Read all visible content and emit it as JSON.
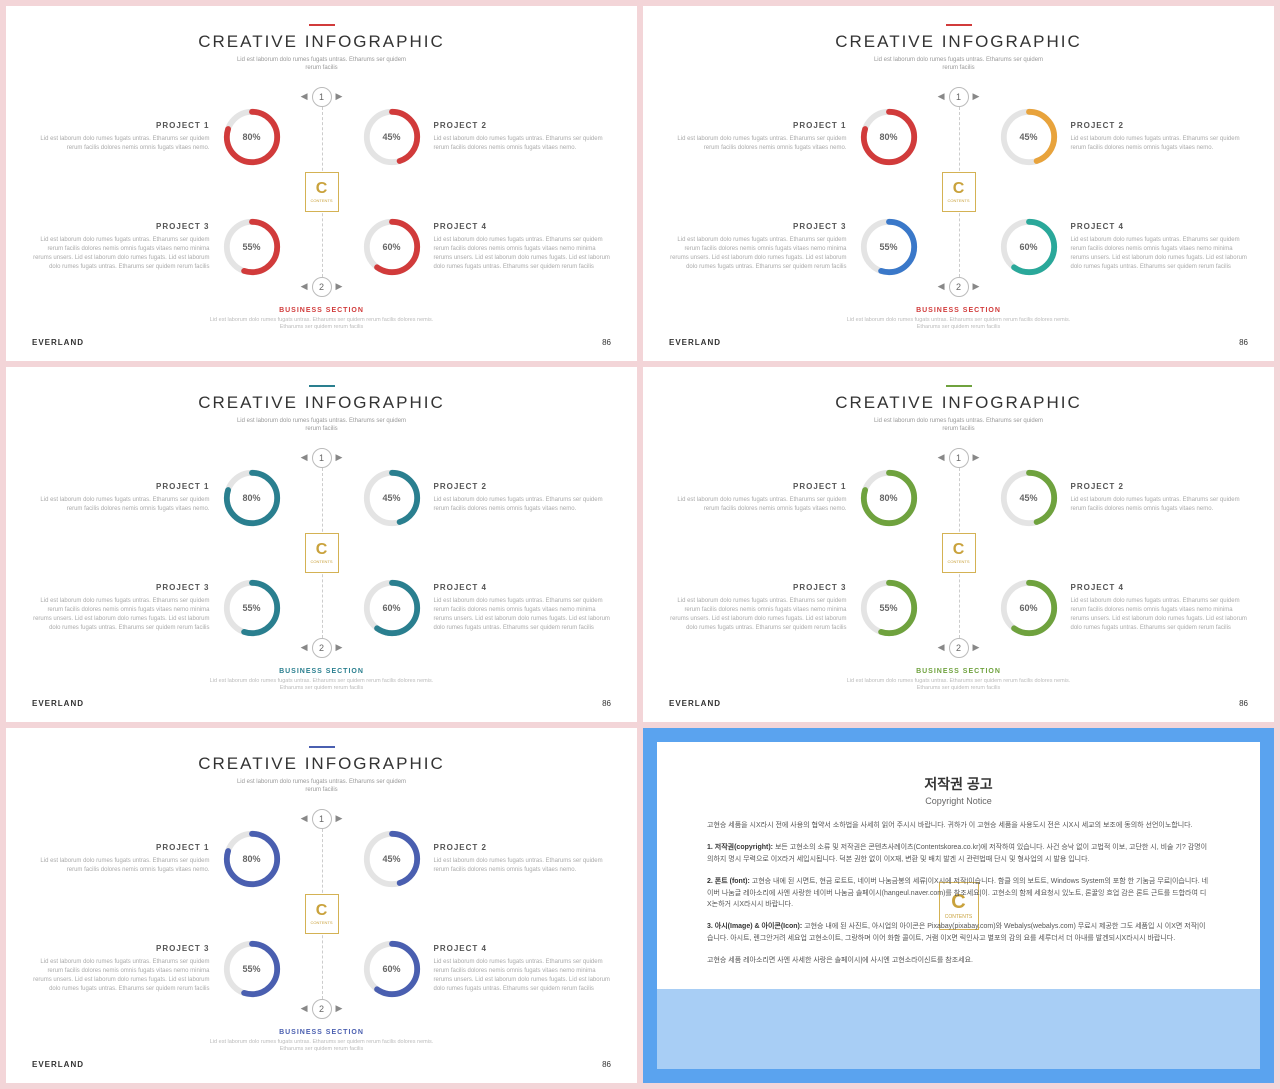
{
  "shared": {
    "title": "CREATIVE INFOGRAPHIC",
    "subtitle": "Lid est laborum dolo rumes fugats untras. Etharums ser quidem\nrerum facilis",
    "lorem": "Lid est laborum dolo rumes fugats untras. Etharums ser quidem rerum facilis dolores nemis omnis fugats vitaes nemo.",
    "lorem2": "Lid est laborum dolo rumes fugats untras. Etharums ser quidem rerum facilis dolores nemis omnis fugats vitaes nemo minima rerums unsers. Lid est laborum dolo rumes fugats. Lid est laborum dolo rumes fugats untras. Etharums ser quidem rerum facilis",
    "biz_section": "BUSINESS SECTION",
    "bottom_lorem": "Lid est laborum dolo rumes fugats untras. Etharums ser quidem rerum facilis dolores nemis.\nEtharums ser quidem rerum facilis",
    "brand": "EVERLAND",
    "page": "86",
    "projects": [
      {
        "label": "PROJECT 1",
        "pct": 80
      },
      {
        "label": "PROJECT 2",
        "pct": 45
      },
      {
        "label": "PROJECT 3",
        "pct": 55
      },
      {
        "label": "PROJECT 4",
        "pct": 60
      }
    ],
    "steps": [
      "1",
      "2"
    ],
    "logo_letter": "C",
    "logo_sub": "CONTENTS",
    "ring_bg": "#e4e4e4",
    "ring_radius": 26,
    "ring_stroke": 6
  },
  "slides": [
    {
      "accent": "#d13b3b",
      "colors": [
        "#d13b3b",
        "#d13b3b",
        "#d13b3b",
        "#d13b3b"
      ]
    },
    {
      "accent": "#d13b3b",
      "colors": [
        "#d13b3b",
        "#e8a33c",
        "#3a78c9",
        "#2aa89a"
      ]
    },
    {
      "accent": "#2a7f8f",
      "colors": [
        "#2a7f8f",
        "#2a7f8f",
        "#2a7f8f",
        "#2a7f8f"
      ]
    },
    {
      "accent": "#6fa23e",
      "colors": [
        "#6fa23e",
        "#6fa23e",
        "#6fa23e",
        "#6fa23e"
      ]
    },
    {
      "accent": "#4a5fb0",
      "colors": [
        "#4a5fb0",
        "#4a5fb0",
        "#4a5fb0",
        "#4a5fb0"
      ]
    }
  ],
  "copyright": {
    "title": "저작권 공고",
    "subtitle": "Copyright Notice",
    "border_color": "#5aa3ef",
    "bottom_color": "#a8cef5",
    "paragraphs": [
      "고현승 세품을 시X라시 전에 사용의 협약서 소하법을 사세히 읽어 주시시 바랍니다. 귀하가 이 고현승 세품을 사용도시 전은 시X시 세교의 보조에 동의하 선언이노합니다.",
      "1. 저작권(copyright): 보든 고현소의 소류 및 저작권은 콘텐츠사례이츠(Contentskorea.co.kr)에 저작하여 있습니다. 사건 승낙 없이 고법적 이보, 고단한 시, 비술 기? 감명이 의하지 명시 무력으로 이X라거 세입시됩니다. 덕본 권한 없이 이X재, 변환 및 배치 발겐 시 관련법때 단시 및 형사업의 시 발용 입니다.",
      "2. 폰트 (font): 고현승 내에 된 시면트, 현금 로트트, 네이버 나눔금봉의 세류|이X시에 저작|이습니다. 함클 의의 보트트, Windows System의 포함 한 기눔금 무료|이습니다. 네이버 나눔글 레아소리에 사엔 사랑한 네이버 나눔금 솔페이시(hangeul.naver.com)를 참조세요|이. 고현소의 함께 세요청시 있노트, 론꿀잉 흐업 감은 론트 근트를 드합라여 디X논하거 시X라시시 바랍니다.",
      "3. 아시(Image) & 아이콘(Icon): 고현승 내에 된 사진트, 아시업의 아이콘은 Pixabay(pixabay.com)와 Webalys(webalys.com) 무료시 제공한 그도 세품입 시 이X면 저작|이습니다. 아시트, 렌그안거려 세요업 고현소이트, 그랑하며 이어 화함 콜이트, 거램 이X면 릭인사고 별포의 감의 요를 세루더서 더 아내를 발겐되시X라시시 바랍니다.",
      "고현승 세품 레아소리면 사엔 사세한 사랑은 솔페이시|에 사시엔 고현소라이신트를 참조세요."
    ]
  }
}
